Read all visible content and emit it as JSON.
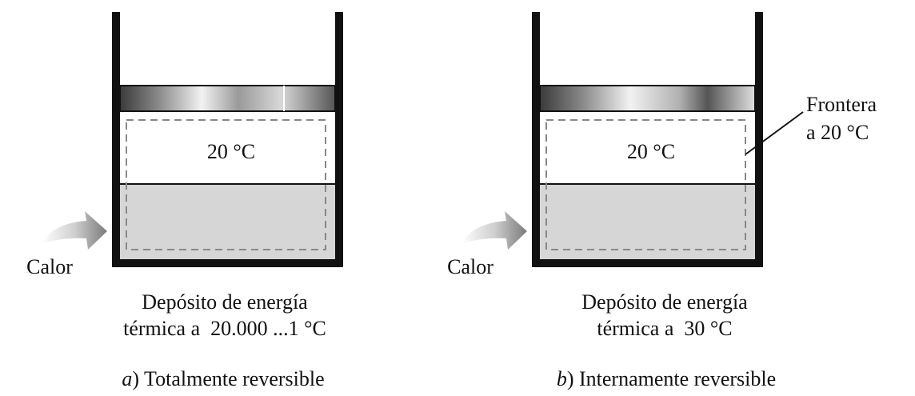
{
  "left": {
    "gas_temperature": "20 °C",
    "heat_label": "Calor",
    "reservoir_line1": "Depósito de energía",
    "reservoir_line2": "térmica a  20.000 ...1 °C",
    "caption_letter": "a",
    "caption_text": ") Totalmente reversible"
  },
  "right": {
    "gas_temperature": "20 °C",
    "heat_label": "Calor",
    "boundary_line1": "Frontera",
    "boundary_line2": "a 20 °C",
    "reservoir_line1": "Depósito de energía",
    "reservoir_line2": "térmica a  30 °C",
    "caption_letter": "b",
    "caption_text": ") Internamente reversible"
  }
}
